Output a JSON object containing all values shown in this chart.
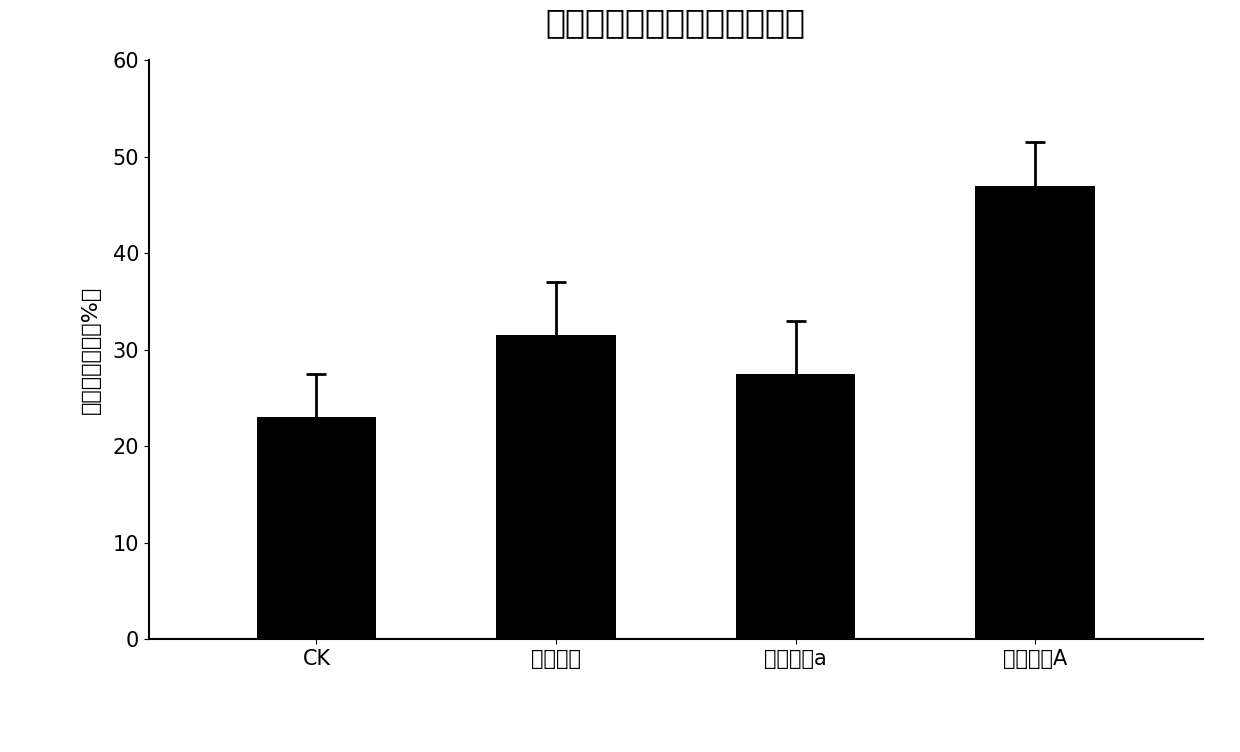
{
  "title": "高浓度石油污染水体修复效果",
  "ylabel": "石油烃去除率（%）",
  "categories": [
    "CK",
    "假单胞菌",
    "复合菌剂a",
    "复合菌剂A"
  ],
  "values": [
    23.0,
    31.5,
    27.5,
    47.0
  ],
  "errors": [
    4.5,
    5.5,
    5.5,
    4.5
  ],
  "bar_color": "#000000",
  "background_color": "#ffffff",
  "ylim": [
    0,
    60
  ],
  "yticks": [
    0,
    10,
    20,
    30,
    40,
    50,
    60
  ],
  "title_fontsize": 24,
  "label_fontsize": 16,
  "tick_fontsize": 15,
  "bar_width": 0.5
}
